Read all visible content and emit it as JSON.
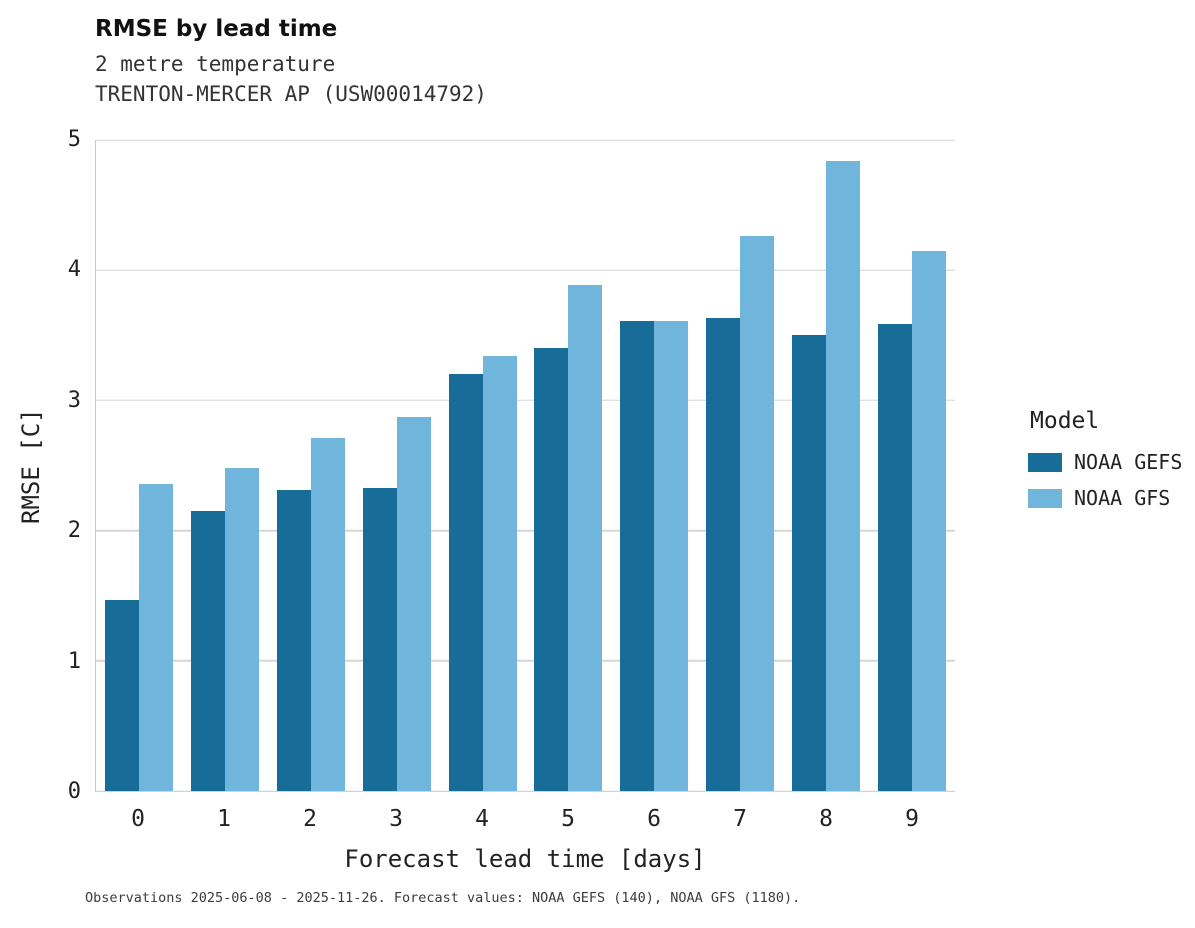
{
  "chart_data": {
    "type": "bar",
    "title": "RMSE by lead time",
    "subtitle_line1": "2 metre temperature",
    "subtitle_line2": "TRENTON-MERCER AP (USW00014792)",
    "categories": [
      "0",
      "1",
      "2",
      "3",
      "4",
      "5",
      "6",
      "7",
      "8",
      "9"
    ],
    "series": [
      {
        "name": "NOAA GEFS",
        "color": "#176d97",
        "values": [
          1.47,
          2.15,
          2.31,
          2.33,
          3.2,
          3.4,
          3.61,
          3.63,
          3.5,
          3.59
        ]
      },
      {
        "name": "NOAA GFS",
        "color": "#6fb5dc",
        "values": [
          2.36,
          2.48,
          2.71,
          2.87,
          3.34,
          3.89,
          3.61,
          4.26,
          4.84,
          4.15
        ]
      }
    ],
    "xlabel": "Forecast lead time [days]",
    "ylabel": "RMSE [C]",
    "ylim": [
      0,
      5
    ],
    "yticks": [
      0,
      1,
      2,
      3,
      4,
      5
    ],
    "grid": "horizontal",
    "legend_title": "Model",
    "legend_position": "right",
    "caption": "Observations 2025-06-08 - 2025-11-26. Forecast values: NOAA GEFS (140), NOAA GFS (1180)."
  }
}
